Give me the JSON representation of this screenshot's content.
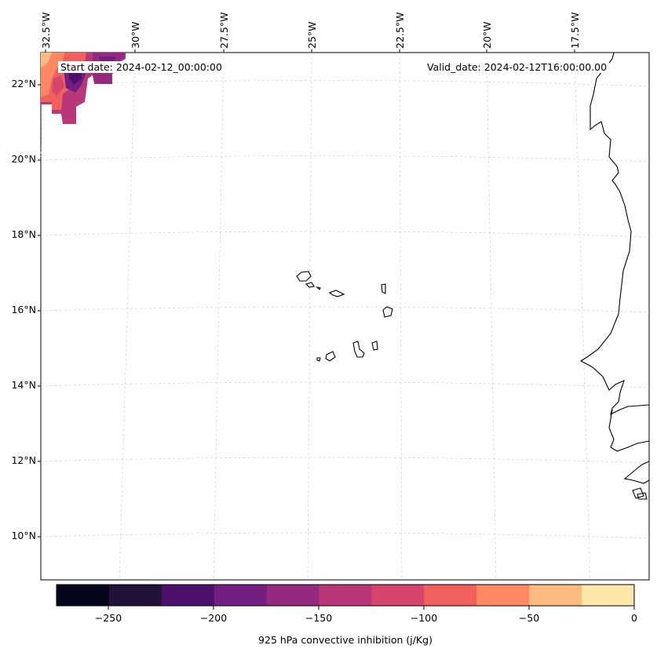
{
  "map": {
    "start_label": "Start date: 2024-02-12_00:00:00",
    "valid_label": "Valid_date: 2024-02-12T16:00:00.00",
    "lat_labels": [
      "22°N",
      "20°N",
      "18°N",
      "16°N",
      "14°N",
      "12°N",
      "10°N"
    ],
    "lon_labels": [
      "32.5°W",
      "30°W",
      "27.5°W",
      "25°W",
      "22.5°W",
      "20°W",
      "17.5°W"
    ],
    "variable": "925 hPa convective inhibition (j/Kg)"
  },
  "colorbar": {
    "label": "925 hPa convective inhibition (j/Kg)",
    "tick_labels": [
      "−250",
      "−200",
      "−150",
      "−100",
      "−50",
      "0"
    ],
    "colors": [
      "#03051a",
      "#211338",
      "#4c0f6b",
      "#721f81",
      "#932a80",
      "#b73779",
      "#d8456c",
      "#f1605d",
      "#fc8961",
      "#febb81",
      "#fde7a8"
    ]
  }
}
